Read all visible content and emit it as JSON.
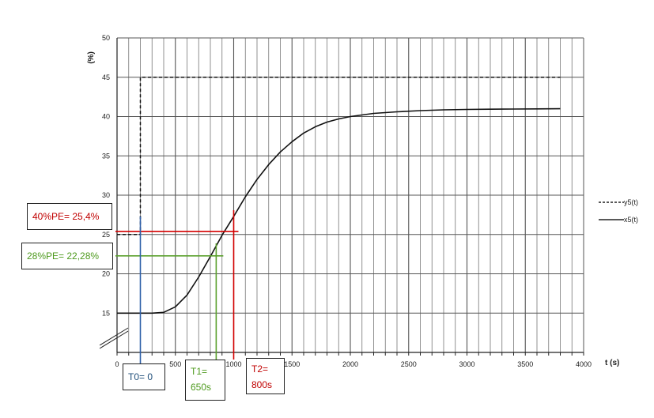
{
  "chart_data": {
    "type": "line",
    "xlabel": "t (s)",
    "ylabel": "(%)",
    "xlim": [
      0,
      4000
    ],
    "ylim": [
      10,
      50
    ],
    "x_ticks": [
      0,
      500,
      1000,
      1500,
      2000,
      2500,
      3000,
      3500,
      4000
    ],
    "y_ticks": [
      15,
      20,
      25,
      30,
      35,
      40,
      45,
      50
    ],
    "grid": true,
    "legend_position": "right",
    "series": [
      {
        "name": "y5(t)",
        "style": "dashed",
        "x": [
          0,
          200,
          200,
          3800
        ],
        "y": [
          25,
          25,
          45,
          45
        ]
      },
      {
        "name": "x5(t)",
        "style": "solid",
        "x": [
          0,
          200,
          300,
          400,
          500,
          600,
          700,
          800,
          900,
          1000,
          1100,
          1200,
          1300,
          1400,
          1500,
          1600,
          1700,
          1800,
          1900,
          2000,
          2200,
          2400,
          2600,
          2800,
          3000,
          3200,
          3400,
          3600,
          3800
        ],
        "y": [
          15,
          15,
          15,
          15.1,
          15.8,
          17.3,
          19.6,
          22.2,
          24.9,
          27.3,
          29.8,
          32.0,
          33.9,
          35.5,
          36.8,
          37.9,
          38.7,
          39.3,
          39.7,
          40.0,
          40.4,
          40.6,
          40.75,
          40.85,
          40.9,
          40.93,
          40.95,
          40.97,
          41.0
        ]
      }
    ],
    "annotations": {
      "pe40_label": "40%PE= 25,4%",
      "pe28_label": "28%PE= 22,28%",
      "t0_label": "T0= 0",
      "t1_label_line1": "T1=",
      "t1_label_line2": "650s",
      "t2_label_line1": "T2=",
      "t2_label_line2": "800s",
      "pe40_value": 25.4,
      "pe28_value": 22.28,
      "t0_value": 200,
      "t1_value": 850,
      "t2_value": 1000,
      "colors": {
        "pe40": "#d40000",
        "pe28": "#5aa02c",
        "t0": "#2e5fa8"
      }
    }
  }
}
